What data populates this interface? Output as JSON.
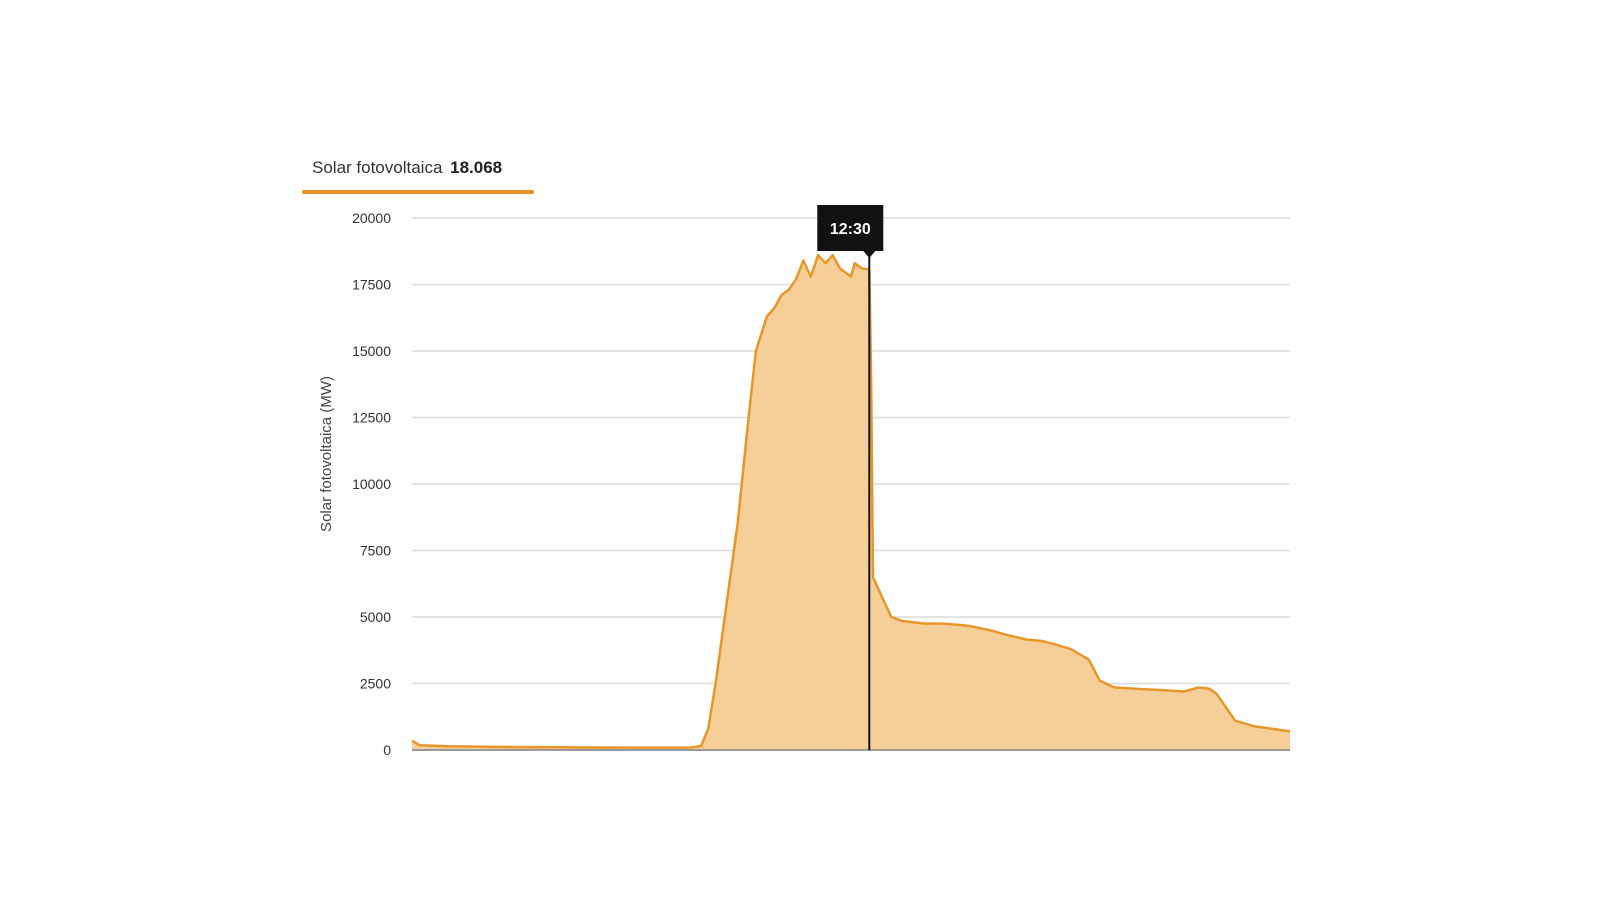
{
  "legend": {
    "label": "Solar fotovoltaica",
    "value": "18.068"
  },
  "tooltip": {
    "time": "12:30"
  },
  "colors": {
    "line": "#e8962a",
    "fill": "#f6cf98",
    "grid": "#dcdcdc",
    "cursor": "#111111",
    "tooltip_bg": "#111111",
    "axis": "#999999"
  },
  "chart_data": {
    "type": "area",
    "ylabel": "Solar fotovoltaica (MW)",
    "xlabel": "",
    "ylim": [
      0,
      20000
    ],
    "yticks": [
      0,
      2500,
      5000,
      7500,
      10000,
      12500,
      15000,
      17500,
      20000
    ],
    "ytick_labels": [
      "0",
      "2500",
      "5000",
      "7500",
      "10000",
      "12500",
      "15000",
      "17500",
      "20000"
    ],
    "grid": true,
    "xlim": [
      0,
      24
    ],
    "cursor_x": 12.5,
    "series": [
      {
        "name": "Solar fotovoltaica",
        "x": [
          0.0,
          0.2,
          1.0,
          2.0,
          3.0,
          4.0,
          5.0,
          6.0,
          7.0,
          7.6,
          7.9,
          8.1,
          8.3,
          8.6,
          8.9,
          9.2,
          9.4,
          9.7,
          9.9,
          10.1,
          10.3,
          10.5,
          10.7,
          10.9,
          11.1,
          11.3,
          11.5,
          11.7,
          11.9,
          12.0,
          12.1,
          12.3,
          12.5,
          12.55,
          12.6,
          12.7,
          12.9,
          13.1,
          13.4,
          13.7,
          14.0,
          14.5,
          15.0,
          15.3,
          15.8,
          16.2,
          16.5,
          16.8,
          17.2,
          17.5,
          18.0,
          18.5,
          18.8,
          19.2,
          19.8,
          20.5,
          21.1,
          21.5,
          21.8,
          22.0,
          22.5,
          23.0,
          23.5,
          24.0
        ],
        "values": [
          350,
          180,
          140,
          120,
          110,
          100,
          95,
          90,
          90,
          90,
          150,
          800,
          2500,
          5500,
          8500,
          12500,
          15000,
          16300,
          16600,
          17100,
          17300,
          17700,
          18400,
          17800,
          18600,
          18300,
          18600,
          18100,
          17900,
          17800,
          18300,
          18100,
          18068,
          14000,
          6500,
          6200,
          5600,
          5000,
          4850,
          4800,
          4750,
          4750,
          4700,
          4650,
          4500,
          4350,
          4250,
          4150,
          4100,
          4000,
          3800,
          3400,
          2600,
          2350,
          2300,
          2250,
          2200,
          2350,
          2300,
          2100,
          1100,
          900,
          800,
          700
        ]
      }
    ]
  }
}
